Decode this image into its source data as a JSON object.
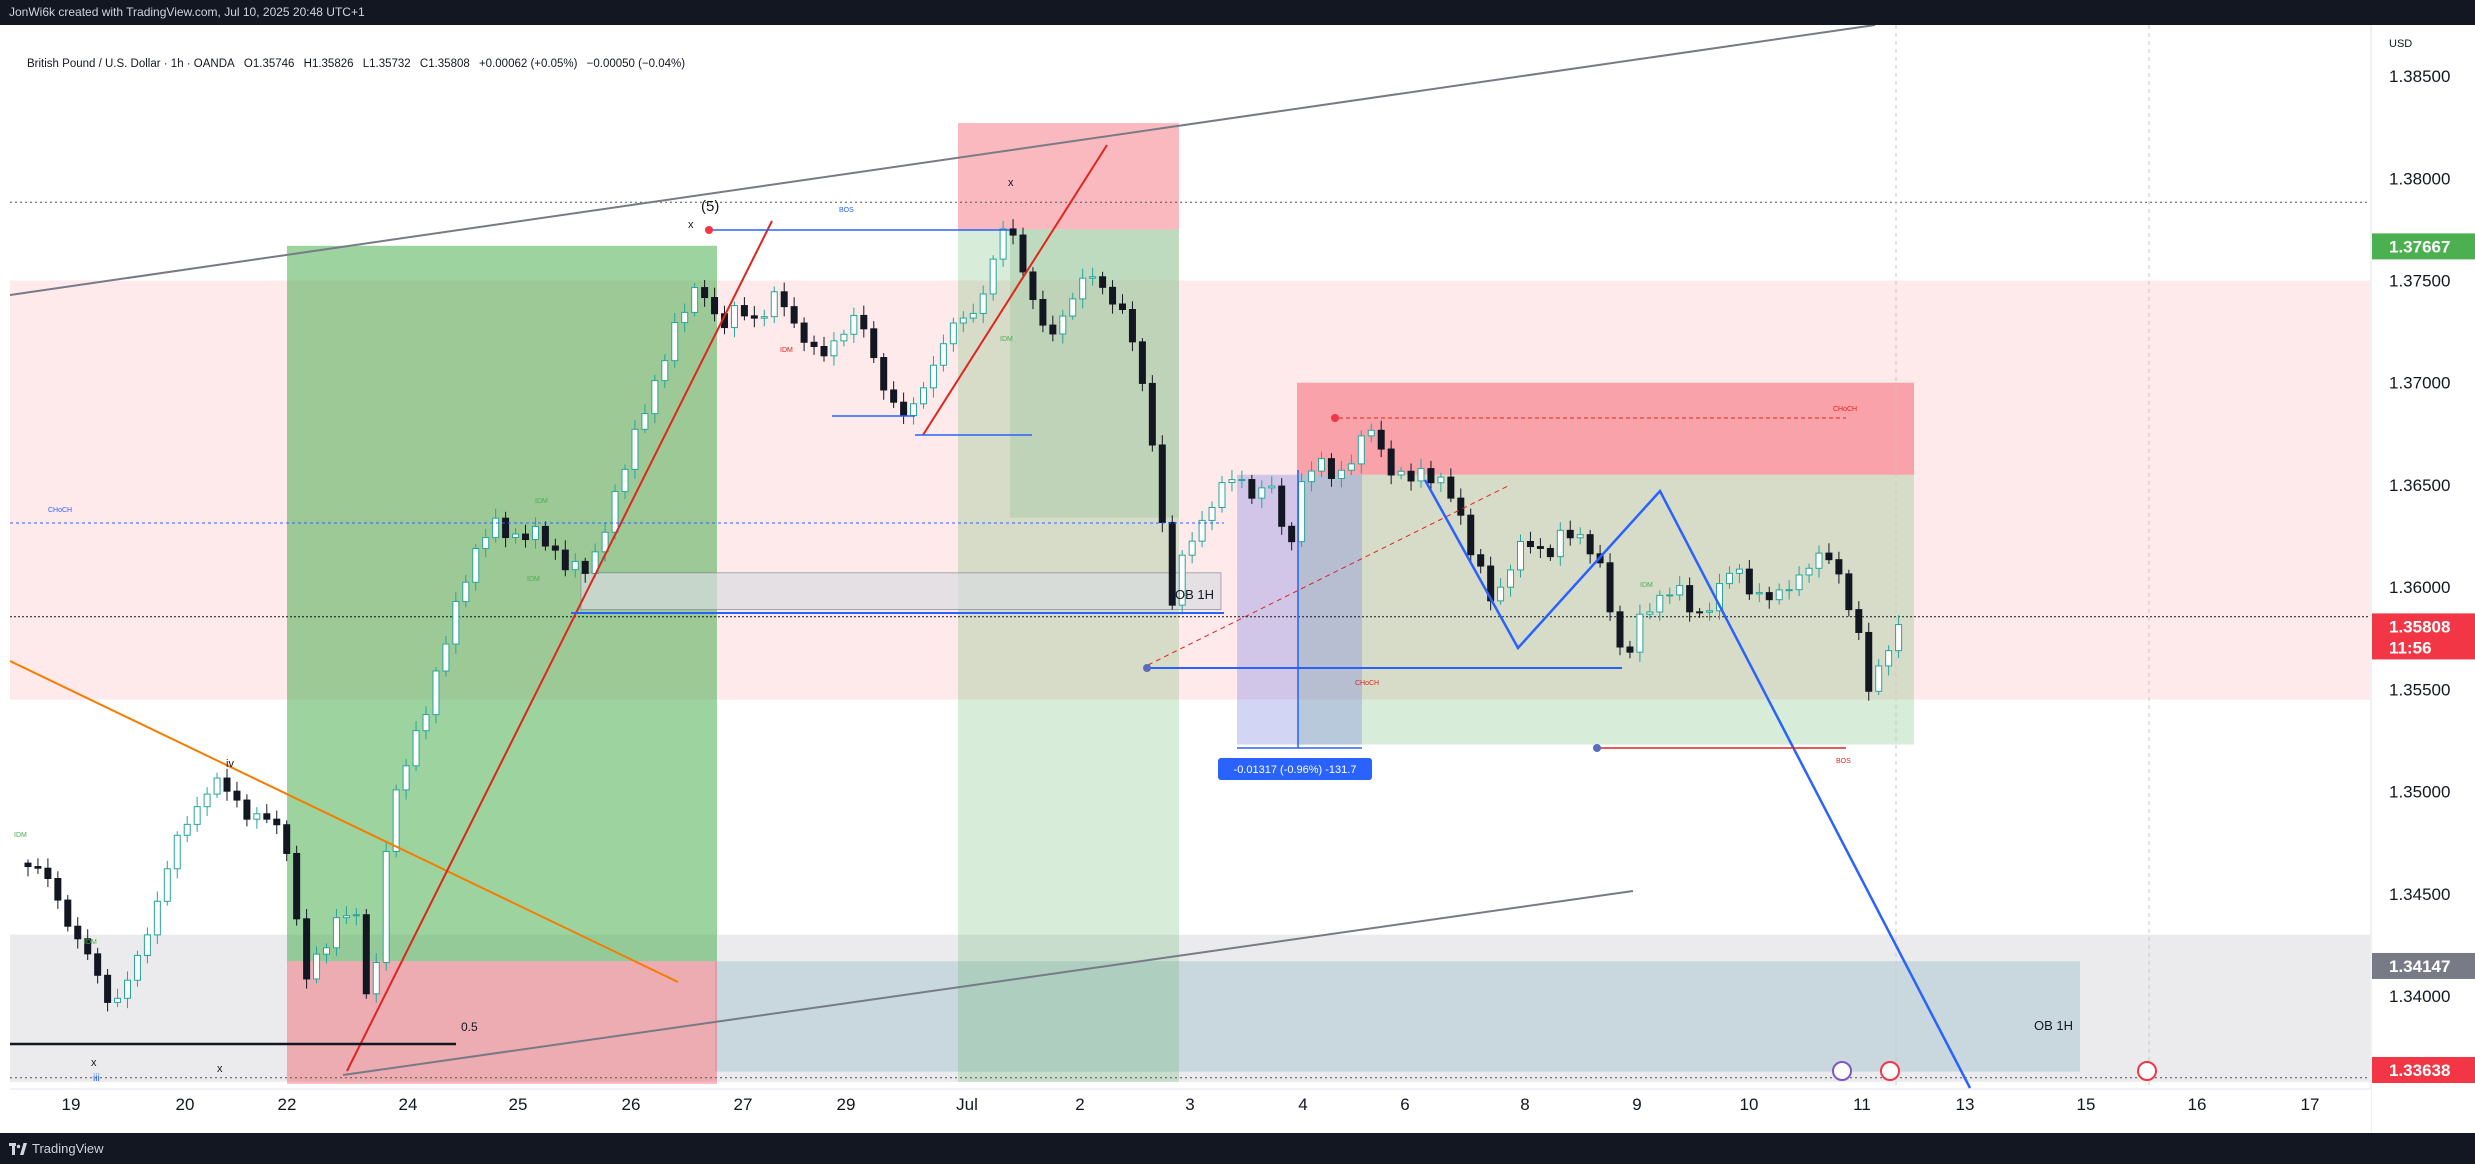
{
  "header": {
    "attribution": "JonWi6k created with TradingView.com, Jul 10, 2025 20:48 UTC+1"
  },
  "legend": {
    "symbol": "British Pound / U.S. Dollar · 1h · OANDA",
    "open": "O1.35746",
    "high": "H1.35826",
    "low": "L1.35732",
    "close": "C1.35808",
    "change": "+0.00062 (+0.05%)",
    "spread": "−0.00050 (−0.04%)"
  },
  "footer": {
    "brand": "TradingView"
  },
  "colors": {
    "up": "#26a69a",
    "down": "#131722",
    "current_price_bg": "#f23645",
    "green_zone": "#4caf50",
    "red_zone": "#f23645",
    "blue_line": "#2962ff",
    "red_line": "#e0251d",
    "orange_line": "#f57c00"
  },
  "chart_data": {
    "type": "candlestick",
    "symbol": "GBPUSD",
    "timeframe": "1h",
    "currency": "USD",
    "ylim": [
      1.3355,
      1.3875
    ],
    "y_ticks": [
      "1.38500",
      "1.38000",
      "1.37500",
      "1.37000",
      "1.36500",
      "1.36000",
      "1.35500",
      "1.35000",
      "1.34500",
      "1.34000"
    ],
    "x_ticks": [
      "19",
      "20",
      "22",
      "24",
      "25",
      "26",
      "27",
      "29",
      "Jul",
      "2",
      "3",
      "4",
      "6",
      "8",
      "9",
      "10",
      "11",
      "13",
      "15",
      "16",
      "17"
    ],
    "price_labels": [
      {
        "text": "1.37667",
        "value": 1.37667,
        "color": "#4caf50"
      },
      {
        "text": "1.35808",
        "value": 1.35808,
        "color": "#f23645",
        "countdown": "11:56"
      },
      {
        "text": "1.34147",
        "value": 1.34147,
        "color": "#787b86"
      },
      {
        "text": "1.33638",
        "value": 1.33638,
        "color": "#f23645"
      }
    ],
    "close_path": [
      [
        0,
        1.3465
      ],
      [
        3,
        1.3455
      ],
      [
        5,
        1.343
      ],
      [
        7,
        1.3415
      ],
      [
        9,
        1.3395
      ],
      [
        11,
        1.341
      ],
      [
        13,
        1.344
      ],
      [
        15,
        1.347
      ],
      [
        17,
        1.349
      ],
      [
        19,
        1.3505
      ],
      [
        21,
        1.3498
      ],
      [
        23,
        1.3488
      ],
      [
        25,
        1.3485
      ],
      [
        27,
        1.347
      ],
      [
        28,
        1.3405
      ],
      [
        30,
        1.342
      ],
      [
        32,
        1.3445
      ],
      [
        34,
        1.3432
      ],
      [
        35,
        1.3372
      ],
      [
        36,
        1.346
      ],
      [
        37,
        1.349
      ],
      [
        39,
        1.352
      ],
      [
        41,
        1.355
      ],
      [
        43,
        1.358
      ],
      [
        45,
        1.3615
      ],
      [
        47,
        1.363
      ],
      [
        49,
        1.3625
      ],
      [
        51,
        1.3628
      ],
      [
        53,
        1.3618
      ],
      [
        55,
        1.3612
      ],
      [
        57,
        1.3605
      ],
      [
        59,
        1.364
      ],
      [
        61,
        1.3665
      ],
      [
        63,
        1.3695
      ],
      [
        65,
        1.372
      ],
      [
        67,
        1.374
      ],
      [
        68,
        1.3752
      ],
      [
        69,
        1.374
      ],
      [
        70,
        1.3722
      ],
      [
        72,
        1.374
      ],
      [
        74,
        1.3728
      ],
      [
        76,
        1.3745
      ],
      [
        78,
        1.3725
      ],
      [
        80,
        1.371
      ],
      [
        82,
        1.3725
      ],
      [
        84,
        1.3732
      ],
      [
        86,
        1.3705
      ],
      [
        88,
        1.3685
      ],
      [
        89,
        1.368
      ],
      [
        90,
        1.3695
      ],
      [
        92,
        1.3715
      ],
      [
        94,
        1.373
      ],
      [
        96,
        1.3738
      ],
      [
        98,
        1.3765
      ],
      [
        99,
        1.3782
      ],
      [
        100,
        1.3765
      ],
      [
        101,
        1.3748
      ],
      [
        103,
        1.3718
      ],
      [
        105,
        1.374
      ],
      [
        107,
        1.3752
      ],
      [
        109,
        1.3745
      ],
      [
        111,
        1.3732
      ],
      [
        112,
        1.3705
      ],
      [
        113,
        1.369
      ],
      [
        114,
        1.3655
      ],
      [
        115,
        1.361
      ],
      [
        115.8,
        1.358
      ],
      [
        116.5,
        1.3612
      ],
      [
        118,
        1.363
      ],
      [
        120,
        1.3645
      ],
      [
        122,
        1.3655
      ],
      [
        124,
        1.3645
      ],
      [
        126,
        1.365
      ],
      [
        127,
        1.3605
      ],
      [
        128,
        1.3648
      ],
      [
        130,
        1.366
      ],
      [
        132,
        1.3655
      ],
      [
        134,
        1.3665
      ],
      [
        135.5,
        1.3678
      ],
      [
        137,
        1.3662
      ],
      [
        139,
        1.365
      ],
      [
        141,
        1.3658
      ],
      [
        143,
        1.365
      ],
      [
        145,
        1.3625
      ],
      [
        147,
        1.3605
      ],
      [
        148,
        1.3585
      ],
      [
        149,
        1.3605
      ],
      [
        151,
        1.3628
      ],
      [
        153,
        1.361
      ],
      [
        155,
        1.3632
      ],
      [
        157,
        1.362
      ],
      [
        159,
        1.3605
      ],
      [
        160,
        1.358
      ],
      [
        161,
        1.356
      ],
      [
        162,
        1.3578
      ],
      [
        164,
        1.3595
      ],
      [
        166,
        1.36
      ],
      [
        168,
        1.3585
      ],
      [
        170,
        1.3595
      ],
      [
        172,
        1.361
      ],
      [
        174,
        1.3598
      ],
      [
        176,
        1.3592
      ],
      [
        178,
        1.3605
      ],
      [
        180,
        1.3612
      ],
      [
        182,
        1.3615
      ],
      [
        183,
        1.36
      ],
      [
        184.5,
        1.3575
      ],
      [
        185.5,
        1.3548
      ],
      [
        187,
        1.3568
      ],
      [
        188.5,
        1.3581
      ]
    ],
    "labels": [
      "(5)",
      "x",
      "x",
      "x",
      "x",
      "OB 1H",
      "OB 1H",
      "0.5",
      "-0.01317 (-0.96%) -131.7",
      "BOS",
      "BOS",
      "CHoCH",
      "CHoCH",
      "CHoCH",
      "IDM",
      "IDM",
      "IDM",
      "IDM",
      "IDM",
      "IDM",
      "IDM",
      "iv",
      "iii"
    ]
  }
}
